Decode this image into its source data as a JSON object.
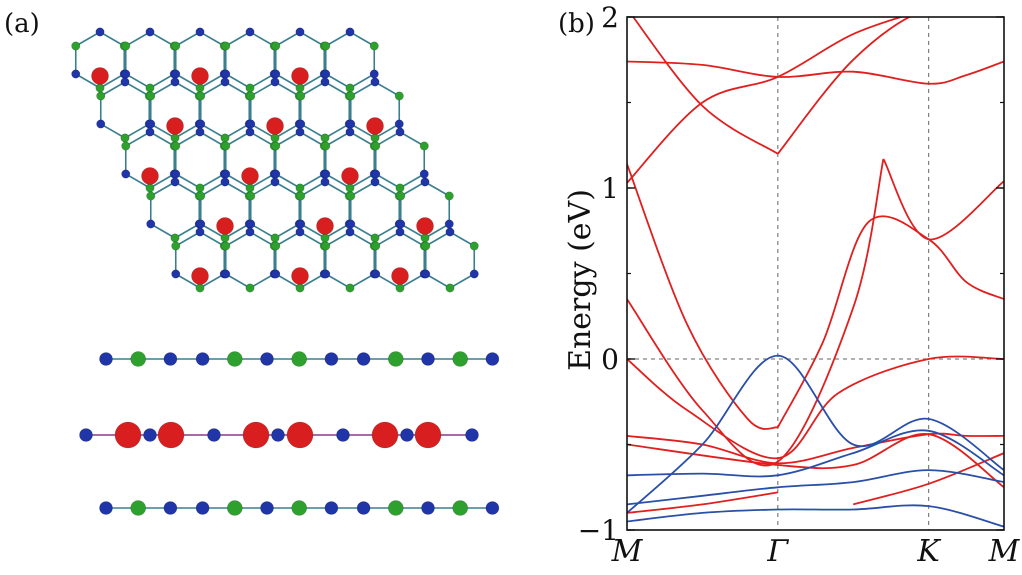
{
  "panels": {
    "a": {
      "label": "(a)"
    },
    "b": {
      "label": "(b)"
    }
  },
  "colors": {
    "blue_atom": "#1f35a8",
    "green_atom": "#2ea02e",
    "red_atom": "#d81e1e",
    "bond_teal": "#3b7f8f",
    "bond_purple": "#8a3a8a",
    "band_red": "#e01f1f",
    "band_blue": "#2a4fa8",
    "guide_gray": "#808080"
  },
  "chart_data": {
    "type": "line",
    "title": "",
    "xlabel": "",
    "ylabel": "Energy (eV)",
    "ylim": [
      -1,
      2
    ],
    "yticks": [
      {
        "value": -1,
        "label": "−1"
      },
      {
        "value": 0,
        "label": "0"
      },
      {
        "value": 1,
        "label": "1"
      },
      {
        "value": 2,
        "label": "2"
      }
    ],
    "x_tick_positions": [
      0,
      1,
      2,
      2.5
    ],
    "x_tick_labels": [
      "M",
      "Γ",
      "K",
      "M"
    ],
    "fermi_level": 0,
    "grid": "dashed at Γ, K and E=0",
    "series": [
      {
        "color": "red",
        "x": [
          0,
          0.5,
          1
        ],
        "y": [
          2.05,
          1.48,
          1.2
        ]
      },
      {
        "color": "red",
        "x": [
          1,
          1.5,
          2,
          2.5
        ],
        "y": [
          1.2,
          1.75,
          2.05,
          2.05
        ]
      },
      {
        "color": "red",
        "x": [
          0,
          0.5,
          1,
          1.5,
          2,
          2.25,
          2.5
        ],
        "y": [
          1.74,
          1.72,
          1.65,
          1.68,
          1.61,
          1.66,
          1.74
        ]
      },
      {
        "color": "red",
        "x": [
          0,
          0.5,
          1,
          1.5,
          2
        ],
        "y": [
          1.03,
          1.5,
          1.65,
          1.9,
          2.05
        ]
      },
      {
        "color": "red",
        "x": [
          0,
          0.4,
          0.8,
          1
        ],
        "y": [
          1.14,
          0.2,
          -0.35,
          -0.4
        ]
      },
      {
        "color": "red",
        "x": [
          1,
          1.3,
          1.6,
          2,
          2.25,
          2.5
        ],
        "y": [
          -0.4,
          0.1,
          0.8,
          0.7,
          0.45,
          0.35
        ]
      },
      {
        "color": "red",
        "x": [
          0,
          0.5,
          1,
          1.5,
          1.7
        ],
        "y": [
          0.35,
          -0.3,
          -0.6,
          0.3,
          1.17
        ]
      },
      {
        "color": "red",
        "x": [
          1.7,
          2,
          2.5
        ],
        "y": [
          1.17,
          0.7,
          1.04
        ]
      },
      {
        "color": "red",
        "x": [
          0,
          0.4,
          1,
          1.4,
          2,
          2.5
        ],
        "y": [
          0,
          -0.3,
          -0.58,
          -0.2,
          0,
          0
        ]
      },
      {
        "color": "red",
        "x": [
          0,
          0.5,
          1,
          1.5,
          2,
          2.25,
          2.5
        ],
        "y": [
          -0.45,
          -0.5,
          -0.61,
          -0.52,
          -0.44,
          -0.45,
          -0.45
        ]
      },
      {
        "color": "red",
        "x": [
          0,
          1,
          1.5,
          2,
          2.5
        ],
        "y": [
          -0.5,
          -0.62,
          -0.62,
          -0.44,
          -0.75
        ]
      },
      {
        "color": "red",
        "x": [
          1.5,
          2,
          2.5
        ],
        "y": [
          -0.85,
          -0.73,
          -0.55
        ]
      },
      {
        "color": "red",
        "x": [
          0,
          0.5,
          1
        ],
        "y": [
          -0.9,
          -0.85,
          -0.78
        ]
      },
      {
        "color": "blue",
        "x": [
          0,
          0.5,
          1,
          1.5,
          2,
          2.5
        ],
        "y": [
          -0.9,
          -0.5,
          0.02,
          -0.5,
          -0.35,
          -0.65
        ]
      },
      {
        "color": "blue",
        "x": [
          0,
          0.5,
          1,
          1.5,
          2,
          2.5
        ],
        "y": [
          -0.68,
          -0.67,
          -0.68,
          -0.55,
          -0.42,
          -0.68
        ]
      },
      {
        "color": "blue",
        "x": [
          0,
          0.5,
          1,
          1.5,
          2,
          2.5
        ],
        "y": [
          -0.85,
          -0.8,
          -0.75,
          -0.72,
          -0.65,
          -0.72
        ]
      },
      {
        "color": "blue",
        "x": [
          0,
          0.5,
          1,
          1.5,
          2,
          2.5
        ],
        "y": [
          -0.95,
          -0.9,
          -0.88,
          -0.88,
          -0.86,
          -0.98
        ]
      }
    ]
  }
}
